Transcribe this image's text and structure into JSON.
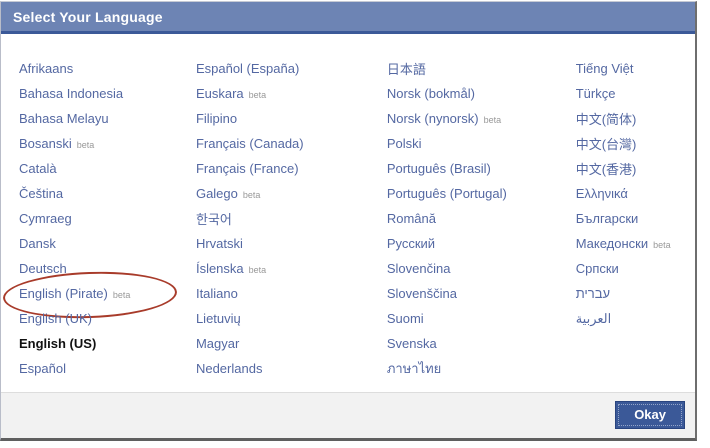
{
  "dialog": {
    "title": "Select Your Language",
    "okay_label": "Okay",
    "beta_label": "beta"
  },
  "colors": {
    "header_bg": "#6d84b4",
    "header_border": "#3b5998",
    "link": "#5468a2",
    "selected_link": "#111111",
    "beta_text": "#999999",
    "footer_bg": "#f2f2f2",
    "button_bg": "#3b5998",
    "button_border": "#29447e",
    "annotation_circle": "#a83b2a"
  },
  "annotation": {
    "type": "red-ellipse",
    "circled_item": "English (Pirate)"
  },
  "columns": [
    {
      "items": [
        {
          "label": "Afrikaans"
        },
        {
          "label": "Bahasa Indonesia"
        },
        {
          "label": "Bahasa Melayu"
        },
        {
          "label": "Bosanski",
          "beta": true
        },
        {
          "label": "Català"
        },
        {
          "label": "Čeština"
        },
        {
          "label": "Cymraeg"
        },
        {
          "label": "Dansk"
        },
        {
          "label": "Deutsch"
        },
        {
          "label": "English (Pirate)",
          "beta": true,
          "circled": true
        },
        {
          "label": "English (UK)"
        },
        {
          "label": "English (US)",
          "selected": true
        },
        {
          "label": "Español"
        }
      ]
    },
    {
      "items": [
        {
          "label": "Español (España)"
        },
        {
          "label": "Euskara",
          "beta": true
        },
        {
          "label": "Filipino"
        },
        {
          "label": "Français (Canada)"
        },
        {
          "label": "Français (France)"
        },
        {
          "label": "Galego",
          "beta": true
        },
        {
          "label": "한국어"
        },
        {
          "label": "Hrvatski"
        },
        {
          "label": "Íslenska",
          "beta": true
        },
        {
          "label": "Italiano"
        },
        {
          "label": "Lietuvių"
        },
        {
          "label": "Magyar"
        },
        {
          "label": "Nederlands"
        }
      ]
    },
    {
      "items": [
        {
          "label": "日本語"
        },
        {
          "label": "Norsk (bokmål)"
        },
        {
          "label": "Norsk (nynorsk)",
          "beta": true
        },
        {
          "label": "Polski"
        },
        {
          "label": "Português (Brasil)"
        },
        {
          "label": "Português (Portugal)"
        },
        {
          "label": "Română"
        },
        {
          "label": "Русский"
        },
        {
          "label": "Slovenčina"
        },
        {
          "label": "Slovenščina"
        },
        {
          "label": "Suomi"
        },
        {
          "label": "Svenska"
        },
        {
          "label": "ภาษาไทย"
        }
      ]
    },
    {
      "items": [
        {
          "label": "Tiếng Việt"
        },
        {
          "label": "Türkçe"
        },
        {
          "label": "中文(简体)"
        },
        {
          "label": "中文(台灣)"
        },
        {
          "label": "中文(香港)"
        },
        {
          "label": "Ελληνικά"
        },
        {
          "label": "Български"
        },
        {
          "label": "Македонски",
          "beta": true
        },
        {
          "label": "Српски"
        },
        {
          "label": "עברית"
        },
        {
          "label": "العربية"
        }
      ]
    }
  ]
}
